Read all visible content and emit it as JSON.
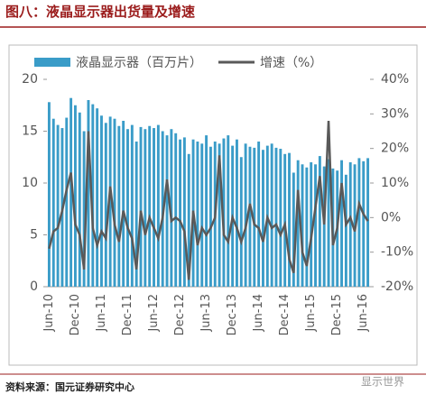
{
  "chart_data": {
    "type": "bar",
    "title": "图八：液晶显示器出货量及增速",
    "categories": [
      "Jun-10",
      null,
      null,
      null,
      null,
      null,
      "Dec-10",
      null,
      null,
      null,
      null,
      null,
      "Jun-11",
      null,
      null,
      null,
      null,
      null,
      "Dec-11",
      null,
      null,
      null,
      null,
      null,
      "Jun-12",
      null,
      null,
      null,
      null,
      null,
      "Dec-12",
      null,
      null,
      null,
      null,
      null,
      "Jun-13",
      null,
      null,
      null,
      null,
      null,
      "Dec-13",
      null,
      null,
      null,
      null,
      null,
      "Jun-14",
      null,
      null,
      null,
      null,
      null,
      "Dec-14",
      null,
      null,
      null,
      null,
      null,
      "Jun-15",
      null,
      null,
      null,
      null,
      null,
      "Dec-15",
      null,
      null,
      null,
      null,
      null,
      "Jun-16",
      null
    ],
    "series": [
      {
        "name": "液晶显示器（百万片）",
        "type": "bar",
        "color": "#3a9cc8",
        "values": [
          17.8,
          16.2,
          15.6,
          15.3,
          16.3,
          18.2,
          17.5,
          16.8,
          15.0,
          18.0,
          17.6,
          17.2,
          16.5,
          15.8,
          16.4,
          16.2,
          15.5,
          16.0,
          15.2,
          15.6,
          14.0,
          15.4,
          15.2,
          15.5,
          15.3,
          15.6,
          15.0,
          14.6,
          15.2,
          14.8,
          14.2,
          14.4,
          12.8,
          14.2,
          14.0,
          13.8,
          14.6,
          13.5,
          14.0,
          13.8,
          14.3,
          14.6,
          13.6,
          14.2,
          12.5,
          13.8,
          13.5,
          13.4,
          14.0,
          13.2,
          13.6,
          13.8,
          13.4,
          13.3,
          12.8,
          12.9,
          11.0,
          12.2,
          11.8,
          11.5,
          12.0,
          11.8,
          12.6,
          11.6,
          12.3,
          11.4,
          11.2,
          12.2,
          10.8,
          12.0,
          11.8,
          12.4,
          12.1,
          12.4
        ]
      },
      {
        "name": "增速（%）",
        "type": "line",
        "axis": "y2",
        "color": "#595959",
        "values": [
          -9,
          -4,
          -3,
          2,
          8,
          13,
          -2,
          -5,
          -15,
          25,
          -3,
          -8,
          -4,
          -6,
          9,
          -2,
          -7,
          2,
          -3,
          -6,
          -15,
          2,
          -5,
          0,
          -3,
          -6,
          0,
          11,
          -1,
          0,
          -1,
          -4,
          -18,
          2,
          -8,
          -3,
          -5,
          -3,
          0,
          18,
          -5,
          -7,
          0,
          -3,
          -7,
          -3,
          4,
          -2,
          -3,
          -7,
          0,
          -3,
          -2,
          -5,
          -2,
          -12,
          -16,
          8,
          -10,
          -14,
          -6,
          3,
          12,
          -2,
          28,
          -8,
          -3,
          10,
          -2,
          0,
          -4,
          4,
          1,
          -1
        ]
      }
    ],
    "ylim": [
      0,
      20
    ],
    "yticks": [
      0,
      5,
      10,
      15,
      20
    ],
    "y2lim": [
      -20,
      40
    ],
    "y2ticks": [
      {
        "value": -20,
        "label": "-20%"
      },
      {
        "value": -10,
        "label": "-10%"
      },
      {
        "value": 0,
        "label": "0%"
      },
      {
        "value": 10,
        "label": "10%"
      },
      {
        "value": 20,
        "label": "20%"
      },
      {
        "value": 30,
        "label": "30%"
      },
      {
        "value": 40,
        "label": "40%"
      }
    ],
    "legend": "top",
    "grid": false
  },
  "source": "资料来源：国元证券研究中心",
  "watermark": "显示世界"
}
